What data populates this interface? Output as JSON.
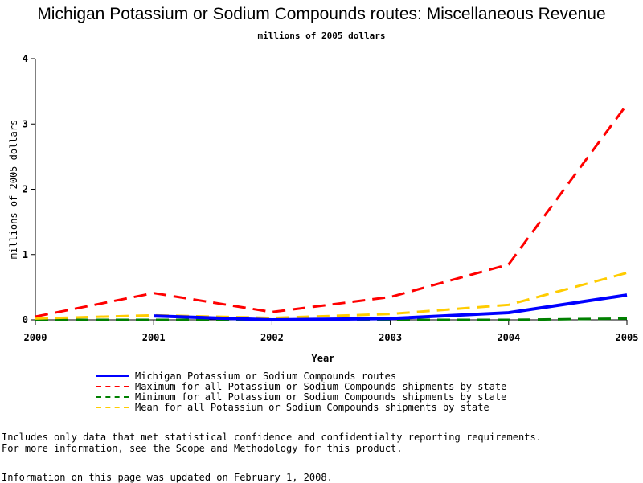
{
  "chart_data": {
    "type": "line",
    "title": "Michigan Potassium or Sodium Compounds routes: Miscellaneous Revenue",
    "subtitle": "millions of 2005 dollars",
    "xlabel": "Year",
    "ylabel": "millions of 2005 dollars",
    "x": [
      "2000",
      "2001",
      "2002",
      "2003",
      "2004",
      "2005"
    ],
    "ylim": [
      0,
      4
    ],
    "yticks": [
      "0",
      "1",
      "2",
      "3",
      "4"
    ],
    "grid": false,
    "legend_position": "bottom",
    "series": [
      {
        "name": "Michigan Potassium or Sodium Compounds routes",
        "values": [
          null,
          0.06,
          0.0,
          0.02,
          0.11,
          0.38
        ],
        "color": "#0000ff",
        "dash": "solid"
      },
      {
        "name": "Maximum for all Potassium or Sodium Compounds shipments by state",
        "values": [
          0.05,
          0.41,
          0.12,
          0.35,
          0.85,
          3.3
        ],
        "color": "#ff0000",
        "dash": "dashed"
      },
      {
        "name": "Minimum for all Potassium or Sodium Compounds shipments by state",
        "values": [
          0.0,
          0.0,
          0.0,
          0.0,
          0.0,
          0.02
        ],
        "color": "#008000",
        "dash": "dashed"
      },
      {
        "name": "Mean for all Potassium or Sodium Compounds shipments by state",
        "values": [
          0.02,
          0.07,
          0.03,
          0.09,
          0.23,
          0.72
        ],
        "color": "#ffcc00",
        "dash": "dashed"
      }
    ]
  },
  "notes": [
    "Includes only data that met statistical confidence and confidentialty reporting requirements.",
    "For more information, see the Scope and Methodology for this product."
  ],
  "updated": "Information on this page was updated on February 1, 2008."
}
